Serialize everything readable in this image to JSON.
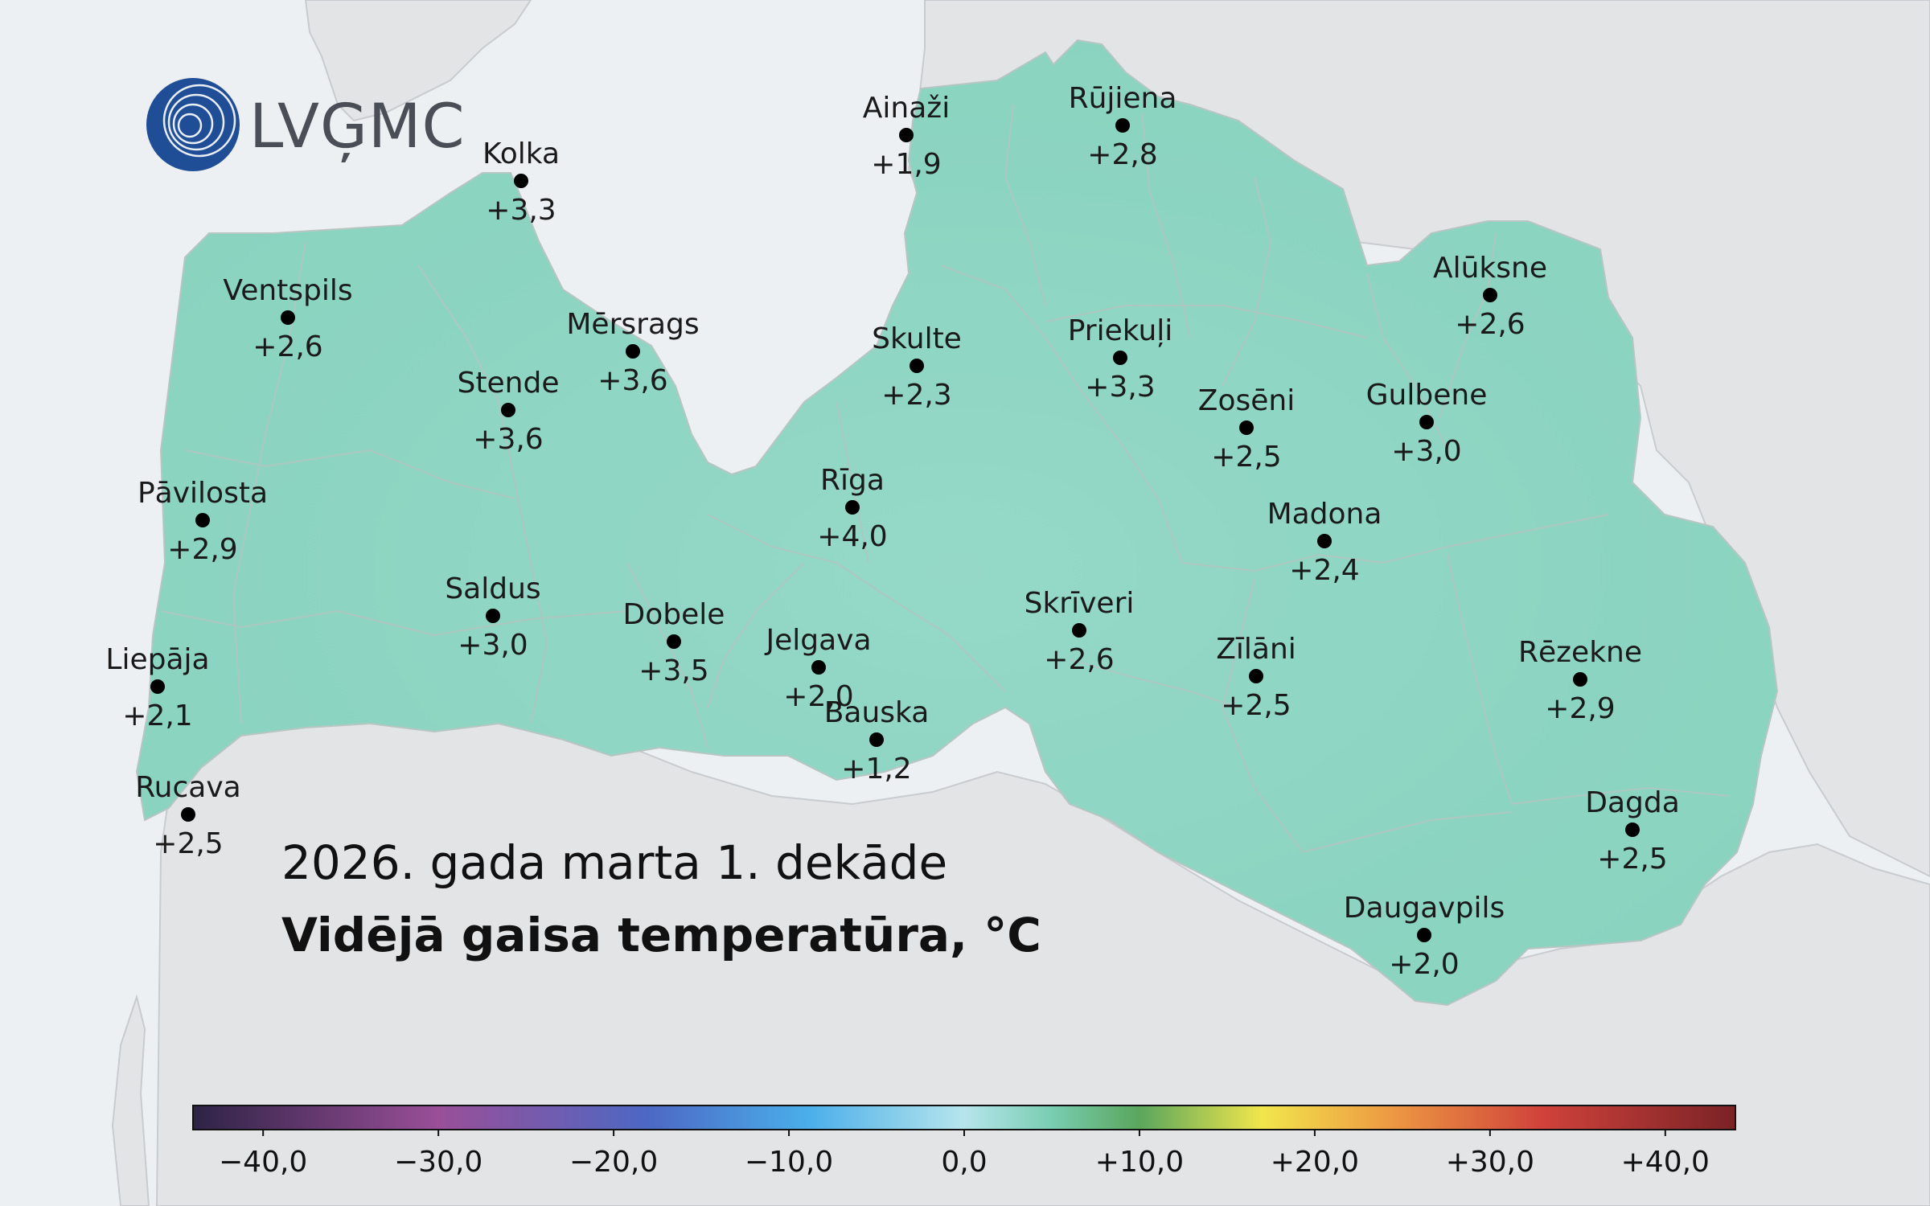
{
  "logo": {
    "text": "LVĢMC"
  },
  "title": {
    "line1": "2026. gada marta 1. dekāde",
    "line2": "Vidējā gaisa temperatūra, °C"
  },
  "colors": {
    "sea": "#edf0f3",
    "land_other": "#e3e4e6",
    "latvia_fill": "#8fd6c4",
    "border": "#c8cbcf",
    "logo_blue": "#1f4e96"
  },
  "stations": [
    {
      "name": "Kolka",
      "value": "+3,3"
    },
    {
      "name": "Ainaži",
      "value": "+1,9"
    },
    {
      "name": "Rūjiena",
      "value": "+2,8"
    },
    {
      "name": "Ventspils",
      "value": "+2,6"
    },
    {
      "name": "Mērsrags",
      "value": "+3,6"
    },
    {
      "name": "Skulte",
      "value": "+2,3"
    },
    {
      "name": "Priekuļi",
      "value": "+3,3"
    },
    {
      "name": "Alūksne",
      "value": "+2,6"
    },
    {
      "name": "Stende",
      "value": "+3,6"
    },
    {
      "name": "Zosēni",
      "value": "+2,5"
    },
    {
      "name": "Gulbene",
      "value": "+3,0"
    },
    {
      "name": "Pāvilosta",
      "value": "+2,9"
    },
    {
      "name": "Rīga",
      "value": "+4,0"
    },
    {
      "name": "Madona",
      "value": "+2,4"
    },
    {
      "name": "Saldus",
      "value": "+3,0"
    },
    {
      "name": "Dobele",
      "value": "+3,5"
    },
    {
      "name": "Jelgava",
      "value": "+2,0"
    },
    {
      "name": "Skrīveri",
      "value": "+2,6"
    },
    {
      "name": "Zīlāni",
      "value": "+2,5"
    },
    {
      "name": "Rēzekne",
      "value": "+2,9"
    },
    {
      "name": "Liepāja",
      "value": "+2,1"
    },
    {
      "name": "Bauska",
      "value": "+1,2"
    },
    {
      "name": "Rucava",
      "value": "+2,5"
    },
    {
      "name": "Dagda",
      "value": "+2,5"
    },
    {
      "name": "Daugavpils",
      "value": "+2,0"
    }
  ],
  "colorbar": {
    "range": [
      -44,
      44
    ],
    "ticks": [
      {
        "value": -40,
        "label": "−40,0"
      },
      {
        "value": -30,
        "label": "−30,0"
      },
      {
        "value": -20,
        "label": "−20,0"
      },
      {
        "value": -10,
        "label": "−10,0"
      },
      {
        "value": 0,
        "label": "0,0"
      },
      {
        "value": 10,
        "label": "+10,0"
      },
      {
        "value": 20,
        "label": "+20,0"
      },
      {
        "value": 30,
        "label": "+30,0"
      },
      {
        "value": 40,
        "label": "+40,0"
      }
    ],
    "stops": [
      {
        "value": -44,
        "color": "#2e2346"
      },
      {
        "value": -30,
        "color": "#9a4f98"
      },
      {
        "value": -18,
        "color": "#4c68c4"
      },
      {
        "value": -9,
        "color": "#4aaeea"
      },
      {
        "value": 0,
        "color": "#b6e5ec"
      },
      {
        "value": 5,
        "color": "#79cdb1"
      },
      {
        "value": 10,
        "color": "#5aa65c"
      },
      {
        "value": 17,
        "color": "#f1e64c"
      },
      {
        "value": 24,
        "color": "#ee9c43"
      },
      {
        "value": 33,
        "color": "#d0423b"
      },
      {
        "value": 44,
        "color": "#7a2226"
      }
    ]
  }
}
